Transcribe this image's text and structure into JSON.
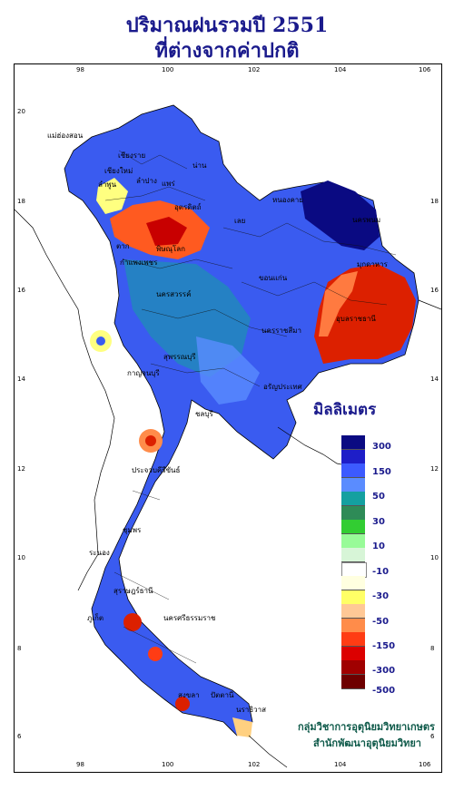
{
  "title_line1": "ปริมาณฝนรวมปี 2551",
  "title_line2": "ที่ต่างจากค่าปกติ",
  "x_ticks": [
    "98",
    "100",
    "102",
    "104",
    "106"
  ],
  "y_ticks": [
    "20",
    "18",
    "16",
    "14",
    "12",
    "10",
    "8",
    "6"
  ],
  "legend": {
    "title": "มิลลิเมตร",
    "labels": [
      "300",
      "150",
      "50",
      "30",
      "10",
      "-10",
      "-30",
      "-50",
      "-150",
      "-300",
      "-500"
    ],
    "colors": [
      "#0a0a82",
      "#1e1ec8",
      "#3c5aff",
      "#5a8cff",
      "#14a0a0",
      "#2e8b57",
      "#32cd32",
      "#98fb98",
      "#d7f5d7",
      "#ffffff",
      "#ffffe0",
      "#ffff66",
      "#ffc896",
      "#ff8c4a",
      "#ff3c14",
      "#dc0000",
      "#a00000",
      "#6e0000"
    ]
  },
  "credit_line1": "กลุ่มวิชาการอุตุนิยมวิทยาเกษตร",
  "credit_line2": "สำนักพัฒนาอุตุนิยมวิทยา",
  "place_labels": [
    "เชียงราย",
    "แม่ฮ่องสอน",
    "เชียงใหม่",
    "ลำพูน",
    "น่าน",
    "แพร่",
    "ลำปาง",
    "อุตรดิตถ์",
    "ตาก",
    "พิษณุโลก",
    "เลย",
    "หนองคาย",
    "นครพนม",
    "มุกดาหาร",
    "กำแพงเพชร",
    "นครสวรรค์",
    "ขอนแก่น",
    "อุบลราชธานี",
    "นครราชสีมา",
    "กาญจนบุรี",
    "สุพรรณบุรี",
    "อรัญประเทศ",
    "ชลบุรี",
    "ประจวบคีรีขันธ์",
    "ชุมพร",
    "ระนอง",
    "สุราษฎร์ธานี",
    "ภูเก็ต",
    "นครศรีธรรมราช",
    "สงขลา",
    "ปัตตานี",
    "นราธิวาส"
  ]
}
